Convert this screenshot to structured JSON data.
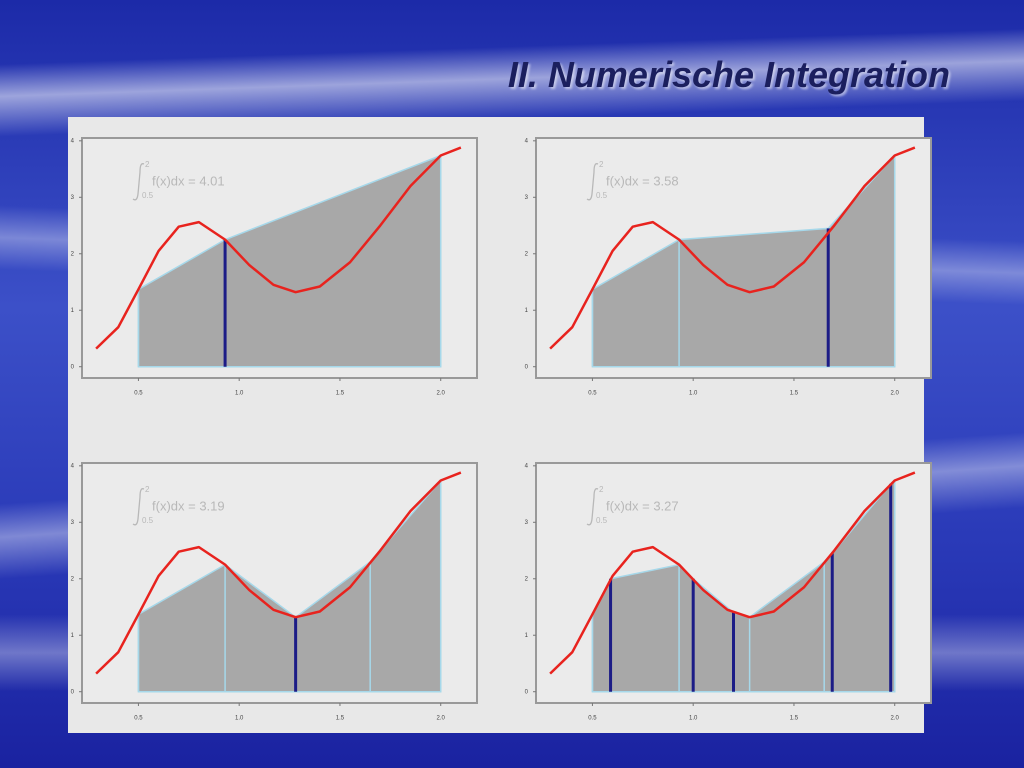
{
  "title": "II. Numerische Integration",
  "chart_data": [
    {
      "type": "trapezoid",
      "annotation": {
        "text": "f(x)dx = 4.01",
        "upper": "2",
        "lower": "0.5"
      },
      "curve": {
        "color": "#e8231e",
        "x": [
          0.29,
          0.4,
          0.5,
          0.6,
          0.7,
          0.8,
          0.93,
          1.05,
          1.17,
          1.28,
          1.4,
          1.55,
          1.7,
          1.85,
          2.0,
          2.1
        ],
        "values": [
          0.32,
          0.7,
          1.37,
          2.05,
          2.48,
          2.56,
          2.25,
          1.8,
          1.45,
          1.32,
          1.42,
          1.85,
          2.5,
          3.2,
          3.74,
          3.88
        ]
      },
      "nodes": {
        "x": [
          0.5,
          0.93,
          2.0
        ],
        "values": [
          1.37,
          2.25,
          3.74
        ],
        "new": [
          false,
          true,
          false
        ]
      },
      "fill": "#a8a8a8",
      "node_color": "#a6d8ea",
      "new_node_color": "#1c1c86",
      "xlim": [
        0.22,
        2.18
      ],
      "ylim": [
        -0.2,
        4.05
      ],
      "xticks": [
        0.5,
        {
          "value": 1,
          "label": "1.0"
        },
        1.5,
        {
          "value": 2,
          "label": "2.0"
        }
      ],
      "yticks": [
        0,
        1,
        2,
        3,
        4
      ]
    },
    {
      "type": "trapezoid",
      "annotation": {
        "text": "f(x)dx = 3.58",
        "upper": "2",
        "lower": "0.5"
      },
      "curve": {
        "color": "#e8231e",
        "x": [
          0.29,
          0.4,
          0.5,
          0.6,
          0.7,
          0.8,
          0.93,
          1.05,
          1.17,
          1.28,
          1.4,
          1.55,
          1.7,
          1.85,
          2.0,
          2.1
        ],
        "values": [
          0.32,
          0.7,
          1.37,
          2.05,
          2.48,
          2.56,
          2.25,
          1.8,
          1.45,
          1.32,
          1.42,
          1.85,
          2.5,
          3.2,
          3.74,
          3.88
        ]
      },
      "nodes": {
        "x": [
          0.5,
          0.93,
          1.67,
          2.0
        ],
        "values": [
          1.37,
          2.25,
          2.45,
          3.74
        ],
        "new": [
          false,
          false,
          true,
          false
        ]
      },
      "fill": "#a8a8a8",
      "node_color": "#a6d8ea",
      "new_node_color": "#1c1c86",
      "xlim": [
        0.22,
        2.18
      ],
      "ylim": [
        -0.2,
        4.05
      ],
      "xticks": [
        0.5,
        {
          "value": 1,
          "label": "1.0"
        },
        1.5,
        {
          "value": 2,
          "label": "2.0"
        }
      ],
      "yticks": [
        0,
        1,
        2,
        3,
        4
      ]
    },
    {
      "type": "trapezoid",
      "annotation": {
        "text": "f(x)dx = 3.19",
        "upper": "2",
        "lower": "0.5"
      },
      "curve": {
        "color": "#e8231e",
        "x": [
          0.29,
          0.4,
          0.5,
          0.6,
          0.7,
          0.8,
          0.93,
          1.05,
          1.17,
          1.28,
          1.4,
          1.55,
          1.7,
          1.85,
          2.0,
          2.1
        ],
        "values": [
          0.32,
          0.7,
          1.37,
          2.05,
          2.48,
          2.56,
          2.25,
          1.8,
          1.45,
          1.32,
          1.42,
          1.85,
          2.5,
          3.2,
          3.74,
          3.88
        ]
      },
      "nodes": {
        "x": [
          0.5,
          0.93,
          1.28,
          1.65,
          2.0
        ],
        "values": [
          1.37,
          2.25,
          1.32,
          2.3,
          3.74
        ],
        "new": [
          false,
          false,
          true,
          false,
          false
        ]
      },
      "fill": "#a8a8a8",
      "node_color": "#a6d8ea",
      "new_node_color": "#1c1c86",
      "xlim": [
        0.22,
        2.18
      ],
      "ylim": [
        -0.2,
        4.05
      ],
      "xticks": [
        0.5,
        {
          "value": 1,
          "label": "1.0"
        },
        1.5,
        {
          "value": 2,
          "label": "2.0"
        }
      ],
      "yticks": [
        0,
        1,
        2,
        3,
        4
      ]
    },
    {
      "type": "trapezoid",
      "annotation": {
        "text": "f(x)dx = 3.27",
        "upper": "2",
        "lower": "0.5"
      },
      "curve": {
        "color": "#e8231e",
        "x": [
          0.29,
          0.4,
          0.5,
          0.6,
          0.7,
          0.8,
          0.93,
          1.05,
          1.17,
          1.28,
          1.4,
          1.55,
          1.7,
          1.85,
          2.0,
          2.1
        ],
        "values": [
          0.32,
          0.7,
          1.37,
          2.05,
          2.48,
          2.56,
          2.25,
          1.8,
          1.45,
          1.32,
          1.42,
          1.85,
          2.5,
          3.2,
          3.74,
          3.88
        ]
      },
      "nodes": {
        "x": [
          0.5,
          0.59,
          0.93,
          1.0,
          1.2,
          1.28,
          1.65,
          1.69,
          1.98,
          2.0
        ],
        "values": [
          1.37,
          2.0,
          2.25,
          2.0,
          1.4,
          1.32,
          2.3,
          2.45,
          3.68,
          3.74
        ],
        "new": [
          false,
          true,
          false,
          true,
          true,
          false,
          false,
          true,
          true,
          false
        ]
      },
      "fill": "#a8a8a8",
      "node_color": "#a6d8ea",
      "new_node_color": "#1c1c86",
      "xlim": [
        0.22,
        2.18
      ],
      "ylim": [
        -0.2,
        4.05
      ],
      "xticks": [
        0.5,
        {
          "value": 1,
          "label": "1.0"
        },
        1.5,
        {
          "value": 2,
          "label": "2.0"
        }
      ],
      "yticks": [
        0,
        1,
        2,
        3,
        4
      ]
    }
  ]
}
